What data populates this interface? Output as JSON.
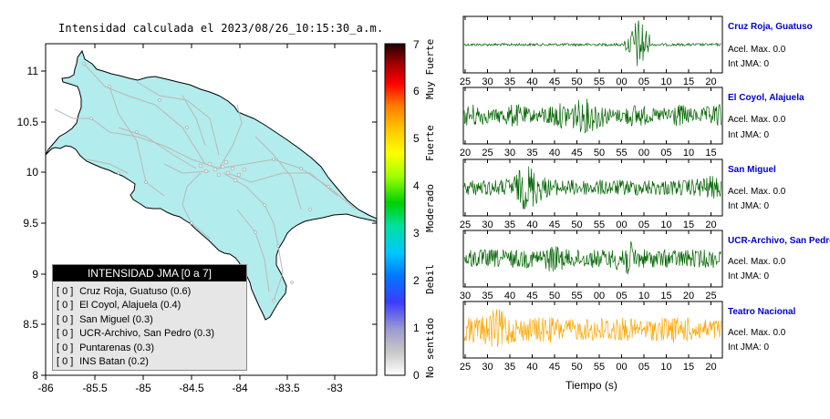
{
  "map": {
    "title": "Intensidad calculada el 2023/08/26_10:15:30_a.m.",
    "x_ticks": [
      "-86",
      "-85.5",
      "-85",
      "-84.5",
      "-84",
      "-83.5",
      "-83"
    ],
    "y_ticks": [
      "11",
      "10.5",
      "10",
      "9.5",
      "9",
      "8.5",
      "8"
    ],
    "land_color": "#b3ecec",
    "road_color": "#b8b8b8"
  },
  "legend": {
    "header": "INTENSIDAD JMA [0 a 7]",
    "items": [
      {
        "idx": "[ 0 ]",
        "label": "Cruz Roja, Guatuso (0.6)"
      },
      {
        "idx": "[ 0 ]",
        "label": "El Coyol, Alajuela (0.4)"
      },
      {
        "idx": "[ 0 ]",
        "label": "San Miguel (0.3)"
      },
      {
        "idx": "[ 0 ]",
        "label": "UCR-Archivo, San Pedro (0.3)"
      },
      {
        "idx": "[ 0 ]",
        "label": "Puntarenas (0.3)"
      },
      {
        "idx": "[ 0 ]",
        "label": "INS Batan (0.2)"
      }
    ]
  },
  "colorbar": {
    "ticks": [
      "0",
      "1",
      "2",
      "3",
      "4",
      "5",
      "6",
      "7"
    ],
    "categories": [
      "No sentido",
      "Debil",
      "Moderado",
      "Fuerte",
      "Muy Fuerte"
    ]
  },
  "seismograms": {
    "xlabel": "Tiempo (s)",
    "stations": [
      {
        "name": "Cruz Roja, Guatuso",
        "accel": "Acel. Max. 0.0",
        "intensity": "Int JMA: 0",
        "color": "#006400",
        "ticks": [
          "25",
          "30",
          "35",
          "40",
          "45",
          "50",
          "55",
          "00",
          "05",
          "10",
          "15",
          "20"
        ],
        "first_tick": 25
      },
      {
        "name": "El Coyol, Alajuela",
        "accel": "Acel. Max. 0.0",
        "intensity": "Int JMA: 0",
        "color": "#006400",
        "ticks": [
          "20",
          "25",
          "30",
          "35",
          "40",
          "45",
          "50",
          "55",
          "00",
          "05",
          "10",
          "15"
        ],
        "first_tick": 20
      },
      {
        "name": "San Miguel",
        "accel": "Acel. Max. 0.0",
        "intensity": "Int JMA: 0",
        "color": "#006400",
        "ticks": [
          "25",
          "30",
          "35",
          "40",
          "45",
          "50",
          "55",
          "00",
          "05",
          "10",
          "15",
          "20"
        ],
        "first_tick": 25
      },
      {
        "name": "UCR-Archivo, San Pedro",
        "accel": "Acel. Max. 0.0",
        "intensity": "Int JMA: 0",
        "color": "#006400",
        "ticks": [
          "30",
          "35",
          "40",
          "45",
          "50",
          "55",
          "00",
          "05",
          "10",
          "15",
          "20",
          "25"
        ],
        "first_tick": 30
      },
      {
        "name": "Teatro Nacional",
        "accel": "Acel. Max. 0.0",
        "intensity": "Int JMA: 0",
        "color": "#ffa500",
        "ticks": [
          "25",
          "30",
          "35",
          "40",
          "45",
          "50",
          "55",
          "00",
          "05",
          "10",
          "15",
          "20"
        ],
        "first_tick": 25
      }
    ]
  }
}
